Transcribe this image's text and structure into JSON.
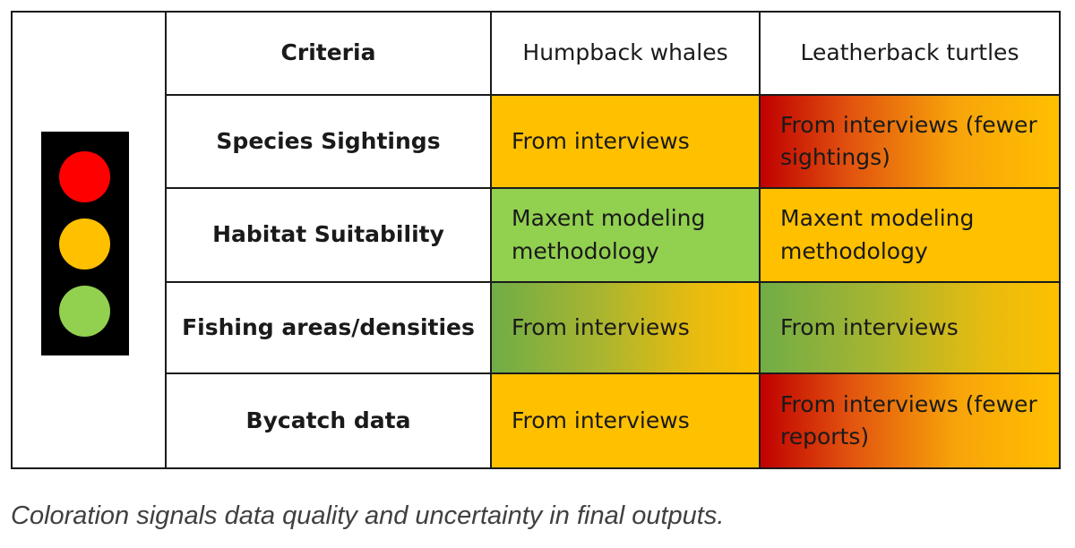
{
  "table": {
    "headers": [
      "Criteria",
      "Humpback whales",
      "Leatherback turtles"
    ],
    "rows": [
      {
        "criterion": "Species Sightings",
        "humpback": "From interviews",
        "leatherback": "From interviews (fewer sightings)"
      },
      {
        "criterion": "Habitat Suitability",
        "humpback": "Maxent modeling methodology",
        "leatherback": "Maxent modeling methodology"
      },
      {
        "criterion": "Fishing areas/densities",
        "humpback": "From interviews",
        "leatherback": "From interviews"
      },
      {
        "criterion": "Bycatch data",
        "humpback": "From interviews",
        "leatherback": "From interviews (fewer reports)"
      }
    ]
  },
  "traffic_light": {
    "lamps": [
      "red",
      "amber",
      "green"
    ],
    "colors": {
      "red": "#ff0000",
      "amber": "#ffc000",
      "green": "#92d050"
    }
  },
  "cell_colors": {
    "amber": "#ffc000",
    "green": "#92d050",
    "red_to_amber": [
      "#c00000",
      "#ffc000"
    ],
    "green_to_amber": [
      "#70ad47",
      "#ffc000"
    ]
  },
  "caption": "Coloration signals data quality and uncertainty in final outputs."
}
